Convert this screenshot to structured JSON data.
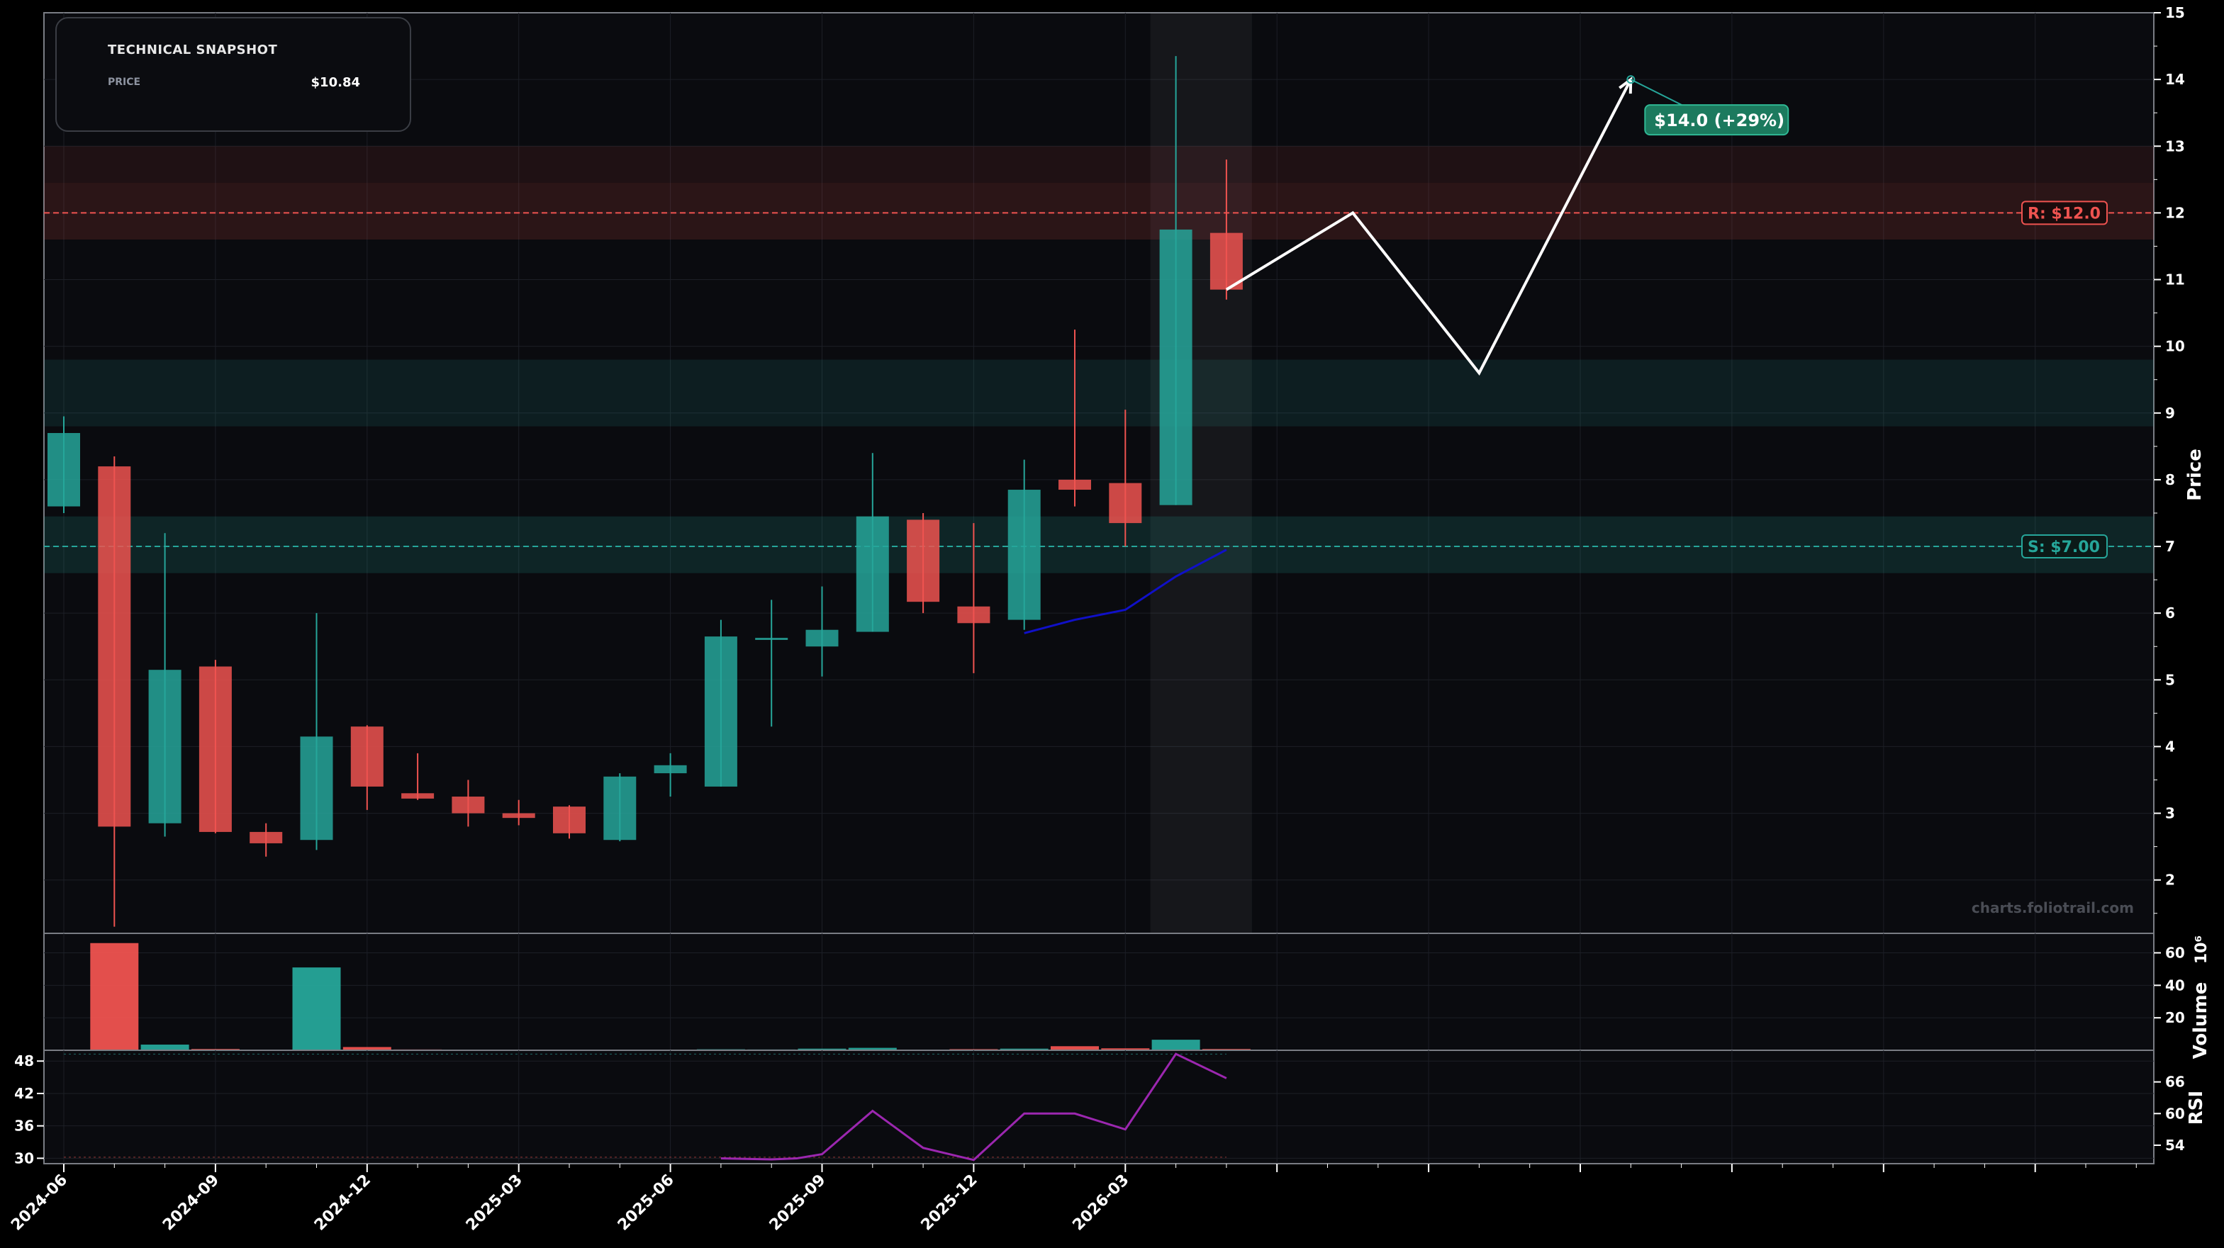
{
  "snapshot": {
    "title": "TECHNICAL SNAPSHOT",
    "price_label": "PRICE",
    "price_value": "$10.84"
  },
  "watermark": "charts.foliotrail.com",
  "colors": {
    "up": "#26a69a",
    "down": "#ef5350",
    "support": "#26a69a",
    "resistance": "#ef5350",
    "ma": "#1010c8",
    "rsi": "#9c27b0",
    "projection": "#ffffff",
    "target": "#1c7a5e"
  },
  "chart_data": [
    {
      "type": "candlestick",
      "title": "",
      "ylabel": "Price",
      "ylim": [
        1.2,
        15
      ],
      "yticks": [
        2,
        3,
        4,
        5,
        6,
        7,
        8,
        9,
        10,
        11,
        12,
        13,
        14,
        15
      ],
      "x_tick_labels": [
        "2024-06",
        "2024-09",
        "2024-12",
        "2025-03",
        "2025-06",
        "2025-09",
        "2025-12",
        "2026-03"
      ],
      "x_tick_index": [
        0,
        3,
        6,
        9,
        12,
        15,
        18,
        21
      ],
      "candles": [
        {
          "o": 7.6,
          "h": 8.95,
          "l": 7.5,
          "c": 8.7
        },
        {
          "o": 8.2,
          "h": 8.35,
          "l": 1.3,
          "c": 2.8
        },
        {
          "o": 2.85,
          "h": 7.2,
          "l": 2.65,
          "c": 5.15
        },
        {
          "o": 5.2,
          "h": 5.3,
          "l": 2.7,
          "c": 2.72
        },
        {
          "o": 2.72,
          "h": 2.85,
          "l": 2.35,
          "c": 2.55
        },
        {
          "o": 2.6,
          "h": 6.0,
          "l": 2.45,
          "c": 4.15
        },
        {
          "o": 4.3,
          "h": 4.32,
          "l": 3.05,
          "c": 3.4
        },
        {
          "o": 3.3,
          "h": 3.9,
          "l": 3.2,
          "c": 3.22
        },
        {
          "o": 3.25,
          "h": 3.5,
          "l": 2.8,
          "c": 3.0
        },
        {
          "o": 3.0,
          "h": 3.2,
          "l": 2.82,
          "c": 2.93
        },
        {
          "o": 3.1,
          "h": 3.12,
          "l": 2.62,
          "c": 2.7
        },
        {
          "o": 2.6,
          "h": 3.6,
          "l": 2.58,
          "c": 3.55
        },
        {
          "o": 3.6,
          "h": 3.9,
          "l": 3.25,
          "c": 3.72
        },
        {
          "o": 3.4,
          "h": 5.9,
          "l": 3.4,
          "c": 5.65
        },
        {
          "o": 5.6,
          "h": 6.2,
          "l": 4.3,
          "c": 5.63
        },
        {
          "o": 5.5,
          "h": 6.4,
          "l": 5.05,
          "c": 5.75
        },
        {
          "o": 5.72,
          "h": 8.4,
          "l": 5.72,
          "c": 7.45
        },
        {
          "o": 7.4,
          "h": 7.5,
          "l": 6.0,
          "c": 6.17
        },
        {
          "o": 6.1,
          "h": 7.35,
          "l": 5.1,
          "c": 5.85
        },
        {
          "o": 5.9,
          "h": 8.3,
          "l": 5.75,
          "c": 7.85
        },
        {
          "o": 8.0,
          "h": 10.25,
          "l": 7.6,
          "c": 7.85
        },
        {
          "o": 7.95,
          "h": 9.05,
          "l": 7.0,
          "c": 7.35
        },
        {
          "o": 7.62,
          "h": 14.35,
          "l": 7.62,
          "c": 11.75
        },
        {
          "o": 11.7,
          "h": 12.8,
          "l": 10.7,
          "c": 10.85
        }
      ],
      "moving_average": [
        {
          "i": 19,
          "v": 5.7
        },
        {
          "i": 20,
          "v": 5.9
        },
        {
          "i": 21,
          "v": 6.05
        },
        {
          "i": 22,
          "v": 6.55
        },
        {
          "i": 23,
          "v": 6.95
        }
      ],
      "support": {
        "label": "S: $7.00",
        "value": 7.0,
        "zone": [
          6.6,
          7.45
        ]
      },
      "resistance": {
        "label": "R: $12.0",
        "value": 12.0,
        "zone": [
          11.6,
          13.0
        ]
      },
      "demand_zone": [
        8.8,
        9.8
      ],
      "projection_path": [
        {
          "i": 23,
          "v": 10.85
        },
        {
          "i": 25.5,
          "v": 12.0
        },
        {
          "i": 28,
          "v": 9.6
        },
        {
          "i": 31,
          "v": 14.0
        }
      ],
      "target": {
        "label": "$14.0 (+29%)",
        "value": 14.0
      },
      "highlight_range": [
        22,
        23
      ]
    },
    {
      "type": "bar",
      "ylabel": "Volume",
      "scale_label": "10⁶",
      "ylim": [
        0,
        72
      ],
      "yticks": [
        20,
        40,
        60
      ],
      "values": [
        0,
        66,
        3.5,
        0.8,
        0,
        51,
        2,
        0.5,
        0.3,
        0.2,
        0.2,
        0.2,
        0.4,
        0.6,
        0.5,
        1.0,
        1.5,
        0.4,
        0.7,
        1.0,
        2.5,
        1.2,
        6.5,
        0.8
      ],
      "up": [
        true,
        false,
        true,
        false,
        false,
        true,
        false,
        false,
        false,
        false,
        false,
        true,
        true,
        true,
        true,
        true,
        true,
        false,
        false,
        true,
        false,
        false,
        true,
        false
      ]
    },
    {
      "type": "line",
      "ylabel": "RSI",
      "left_yticks": [
        30,
        36,
        42,
        48
      ],
      "left_ylim": [
        29,
        50
      ],
      "right_yticks": [
        54,
        60,
        66
      ],
      "right_ylim": [
        50.5,
        72
      ],
      "values": [
        {
          "i": 13,
          "v": 51.5
        },
        {
          "i": 14,
          "v": 51.3
        },
        {
          "i": 14.5,
          "v": 51.5
        },
        {
          "i": 15,
          "v": 52.3
        },
        {
          "i": 16,
          "v": 60.5
        },
        {
          "i": 17,
          "v": 53.5
        },
        {
          "i": 18,
          "v": 51.2
        },
        {
          "i": 19,
          "v": 60.0
        },
        {
          "i": 20,
          "v": 60.0
        },
        {
          "i": 21,
          "v": 57.0
        },
        {
          "i": 22,
          "v": 71.3
        },
        {
          "i": 23,
          "v": 66.7
        }
      ]
    }
  ]
}
